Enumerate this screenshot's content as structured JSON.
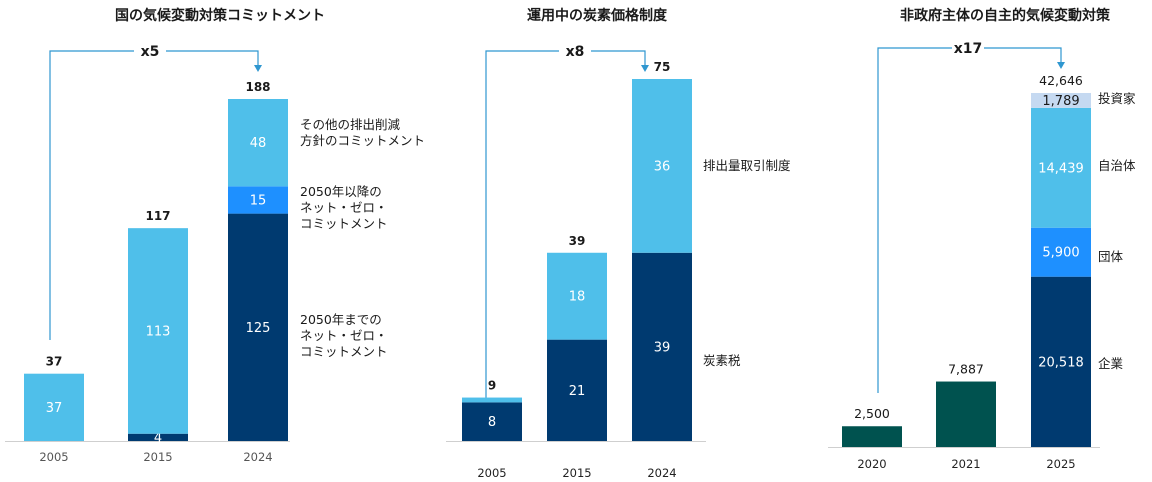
{
  "colors": {
    "dark_navy": "#003a70",
    "light_blue": "#4fbfea",
    "mid_blue": "#1e90ff",
    "pale_blue": "#c5d9f1",
    "dark_green": "#00524f",
    "bracket": "#2f97d0"
  },
  "chart_data": [
    {
      "id": "national",
      "type": "bar",
      "stacked": true,
      "title": "国の気候変動対策コミットメント",
      "multiplier": "x5",
      "categories": [
        "2005",
        "2015",
        "2024"
      ],
      "totals": [
        "37",
        "117",
        "188"
      ],
      "series": [
        {
          "name": "2050年までの\nネット・ゼロ・\nコミットメント",
          "color": "dark_navy",
          "values": [
            0,
            4,
            125
          ],
          "labels": [
            "",
            "4",
            "125"
          ]
        },
        {
          "name": "2050年以降の\nネット・ゼロ・\nコミットメント",
          "color": "mid_blue",
          "values": [
            0,
            0,
            15
          ],
          "labels": [
            "",
            "",
            "15"
          ]
        },
        {
          "name": "その他の排出削減\n方針のコミットメント",
          "color": "light_blue",
          "values": [
            37,
            113,
            48
          ],
          "labels": [
            "37",
            "113",
            "48"
          ]
        }
      ]
    },
    {
      "id": "carbon_pricing",
      "type": "bar",
      "stacked": true,
      "title": "運用中の炭素価格制度",
      "multiplier": "x8",
      "categories": [
        "2005",
        "2015",
        "2024"
      ],
      "totals": [
        "9",
        "39",
        "75"
      ],
      "series": [
        {
          "name": "炭素税",
          "color": "dark_navy",
          "values": [
            8,
            21,
            39
          ],
          "labels": [
            "8",
            "21",
            "39"
          ]
        },
        {
          "name": "排出量取引制度",
          "color": "light_blue",
          "values": [
            1,
            18,
            36
          ],
          "labels": [
            "",
            "18",
            "36"
          ]
        }
      ]
    },
    {
      "id": "non_state",
      "type": "bar",
      "stacked": true,
      "title": "非政府主体の自主的気候変動対策",
      "multiplier": "x17",
      "categories": [
        "2020",
        "2021",
        "2025"
      ],
      "totals": [
        "2,500",
        "7,887",
        "42,646"
      ],
      "series": [
        {
          "name": "",
          "color": "dark_green",
          "values": [
            2500,
            7887,
            0
          ],
          "labels": [
            "",
            "",
            ""
          ]
        },
        {
          "name": "企業",
          "color": "dark_navy",
          "values": [
            0,
            0,
            20518
          ],
          "labels": [
            "",
            "",
            "20,518"
          ]
        },
        {
          "name": "団体",
          "color": "mid_blue",
          "values": [
            0,
            0,
            5900
          ],
          "labels": [
            "",
            "",
            "5,900"
          ]
        },
        {
          "name": "自治体",
          "color": "light_blue",
          "values": [
            0,
            0,
            14439
          ],
          "labels": [
            "",
            "",
            "14,439"
          ]
        },
        {
          "name": "投資家",
          "color": "pale_blue",
          "values": [
            0,
            0,
            1789
          ],
          "labels": [
            "",
            "",
            "1,789"
          ]
        }
      ]
    }
  ]
}
